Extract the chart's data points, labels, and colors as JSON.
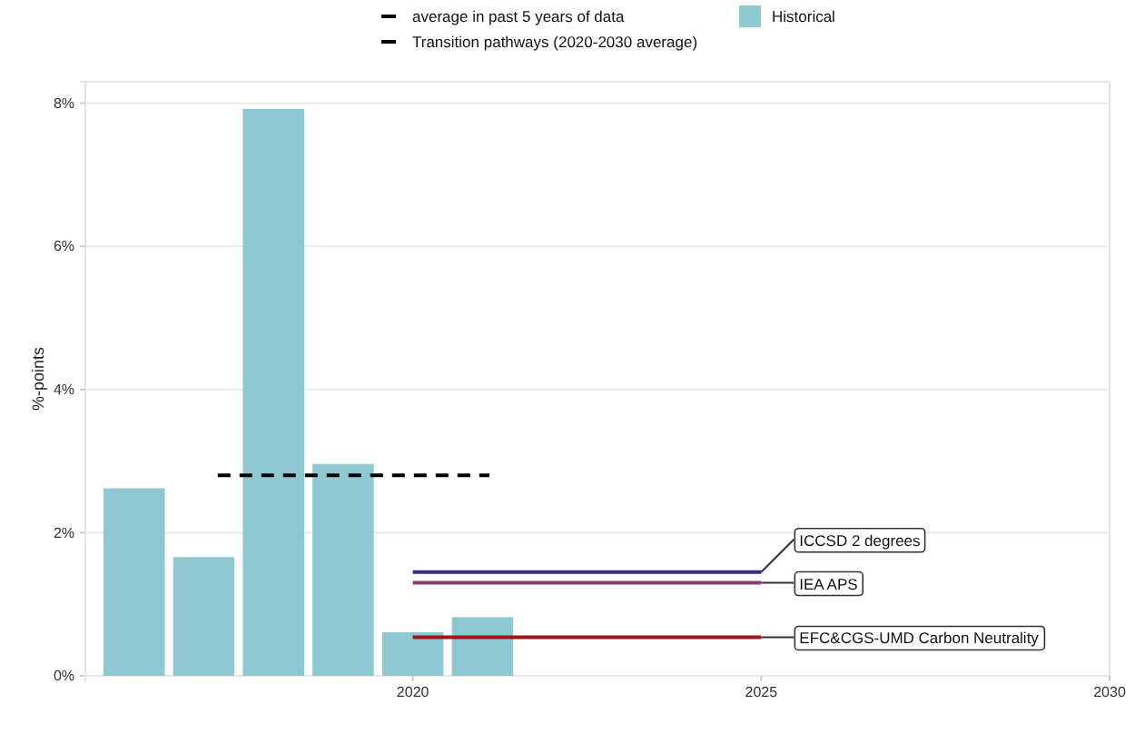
{
  "chart_data": {
    "type": "bar",
    "ylabel": "%-points",
    "x": [
      2016,
      2017,
      2018,
      2019,
      2020,
      2021
    ],
    "xlim": [
      2015.3,
      2030
    ],
    "xticks": [
      2020,
      2025,
      2030
    ],
    "ylim": [
      0,
      8.3
    ],
    "yticks": [
      {
        "value": 0,
        "label": "0%"
      },
      {
        "value": 2,
        "label": "2%"
      },
      {
        "value": 4,
        "label": "4%"
      },
      {
        "value": 6,
        "label": "6%"
      },
      {
        "value": 8,
        "label": "8%"
      }
    ],
    "grid": "y",
    "legend": "top",
    "annotations": [
      "Transition pathways (2020-2030 average)"
    ],
    "series": [
      {
        "name": "Historical",
        "color": "#8ec9d1",
        "values": [
          2.62,
          1.66,
          7.92,
          2.96,
          0.61,
          0.82
        ]
      },
      {
        "name": "average in past 5 years of data",
        "type": "line",
        "line_style": "dashed",
        "color": "#000000",
        "x": [
          2017.2,
          2021.1
        ],
        "values": [
          2.8,
          2.8
        ]
      },
      {
        "name": "ICCSD 2 degrees",
        "type": "line",
        "line_style": "solid",
        "color": "#3b2f85",
        "x": [
          2020,
          2025
        ],
        "values": [
          1.45,
          1.45
        ]
      },
      {
        "name": "IEA APS",
        "type": "line",
        "line_style": "solid",
        "color": "#8a3c6c",
        "x": [
          2020,
          2025
        ],
        "values": [
          1.3,
          1.3
        ]
      },
      {
        "name": "EFC&CGS-UMD Carbon Neutrality",
        "type": "line",
        "line_style": "solid",
        "color": "#a0141a",
        "x": [
          2020,
          2025
        ],
        "values": [
          0.54,
          0.54
        ]
      }
    ]
  }
}
